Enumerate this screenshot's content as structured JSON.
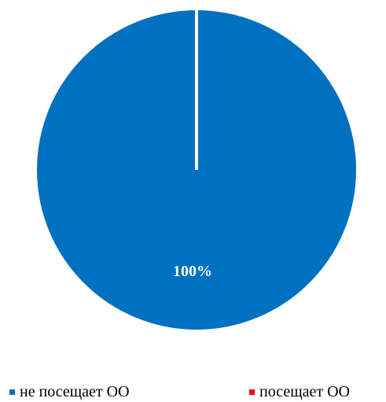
{
  "chart_data": {
    "type": "pie",
    "title": "",
    "labels": [
      "не посещает ОО",
      "посещает ОО"
    ],
    "values": [
      100,
      0
    ],
    "data_labels": [
      "100%",
      ""
    ],
    "colors": [
      "#0070C0",
      "#FF0000"
    ],
    "legend": {
      "placement": "bottom",
      "items": [
        {
          "label": "не посещает ОО",
          "color": "#0070C0"
        },
        {
          "label": "посещает ОО",
          "color": "#FF0000"
        }
      ]
    }
  }
}
